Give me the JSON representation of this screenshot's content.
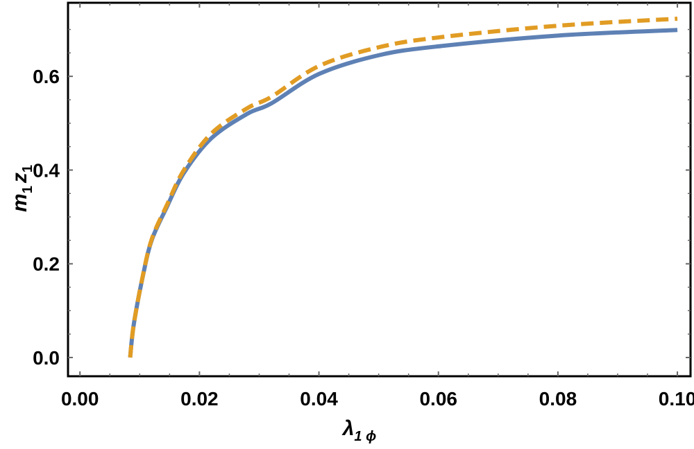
{
  "chart_data": {
    "type": "line",
    "xlabel": {
      "main": "λ",
      "sub": "1 ϕ"
    },
    "ylabel": {
      "m": "m",
      "m_sub": "1",
      "z": "z",
      "z_sub": "1"
    },
    "xlim": [
      -0.002,
      0.1022
    ],
    "ylim": [
      -0.04,
      0.757
    ],
    "xticks": [
      0.0,
      0.02,
      0.04,
      0.06,
      0.08,
      0.1
    ],
    "xtick_labels": [
      "0.00",
      "0.02",
      "0.04",
      "0.06",
      "0.08",
      "0.10"
    ],
    "yticks": [
      0.0,
      0.2,
      0.4,
      0.6
    ],
    "ytick_labels": [
      "0.0",
      "0.2",
      "0.4",
      "0.6"
    ],
    "grid": false,
    "series": [
      {
        "color": "#5e81b5",
        "style": "solid",
        "x": [
          0.0084,
          0.009,
          0.0105,
          0.012,
          0.0145,
          0.0174,
          0.022,
          0.028,
          0.032,
          0.04,
          0.05,
          0.06,
          0.08,
          0.1
        ],
        "y": [
          0.0,
          0.07,
          0.172,
          0.25,
          0.32,
          0.394,
          0.468,
          0.52,
          0.542,
          0.605,
          0.645,
          0.664,
          0.687,
          0.699
        ]
      },
      {
        "color": "#e19c24",
        "style": "dashed",
        "x": [
          0.0084,
          0.009,
          0.0105,
          0.012,
          0.0145,
          0.0174,
          0.022,
          0.028,
          0.032,
          0.04,
          0.05,
          0.06,
          0.08,
          0.1
        ],
        "y": [
          0.0,
          0.07,
          0.173,
          0.252,
          0.324,
          0.4,
          0.478,
          0.532,
          0.556,
          0.622,
          0.662,
          0.683,
          0.708,
          0.723
        ]
      }
    ]
  }
}
